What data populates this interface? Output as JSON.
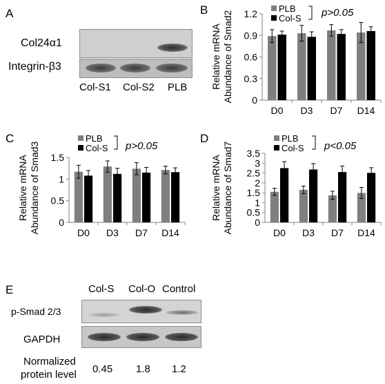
{
  "panels": {
    "A": {
      "letter": "A",
      "rows": [
        "Col24α1",
        "Integrin-β3"
      ],
      "lanes": [
        "Col-S1",
        "Col-S2",
        "PLB"
      ]
    },
    "E": {
      "letter": "E",
      "rows": [
        "p-Smad 2/3",
        "GAPDH"
      ],
      "lanes": [
        "Col-S",
        "Col-O",
        "Control"
      ],
      "quant_label_line1": "Normalized",
      "quant_label_line2": "protein level",
      "quant_values": [
        "0.45",
        "1.8",
        "1.2"
      ]
    }
  },
  "colors": {
    "plb": "#7f7f7f",
    "col_s": "#000000"
  },
  "chart_data": [
    {
      "panel": "B",
      "type": "bar",
      "categories": [
        "D0",
        "D3",
        "D7",
        "D14"
      ],
      "series": [
        {
          "name": "PLB",
          "values": [
            0.89,
            0.93,
            0.97,
            0.94
          ],
          "errors": [
            0.09,
            0.11,
            0.08,
            0.14
          ]
        },
        {
          "name": "Col-S",
          "values": [
            0.91,
            0.88,
            0.92,
            0.96
          ],
          "errors": [
            0.05,
            0.07,
            0.06,
            0.06
          ]
        }
      ],
      "ylabel_line1": "Relative mRNA",
      "ylabel_line2": "Abundance of Smad2",
      "ylim": [
        0,
        1.2
      ],
      "yticks": [
        "0",
        "0.3",
        "0.6",
        "0.9",
        "1.2"
      ],
      "annotation": "p>0.05",
      "legend": "top-left"
    },
    {
      "panel": "C",
      "type": "bar",
      "categories": [
        "D0",
        "D3",
        "D7",
        "D14"
      ],
      "series": [
        {
          "name": "PLB",
          "values": [
            1.17,
            1.29,
            1.24,
            1.21
          ],
          "errors": [
            0.15,
            0.13,
            0.14,
            0.09
          ]
        },
        {
          "name": "Col-S",
          "values": [
            1.08,
            1.12,
            1.15,
            1.16
          ],
          "errors": [
            0.12,
            0.13,
            0.12,
            0.1
          ]
        }
      ],
      "ylabel_line1": "Relative mRNA",
      "ylabel_line2": "Abundance of Smad3",
      "ylim": [
        0,
        1.5
      ],
      "yticks": [
        "0",
        "0.5",
        "1",
        "1.5"
      ],
      "annotation": "p>0.05",
      "legend": "top-left"
    },
    {
      "panel": "D",
      "type": "bar",
      "categories": [
        "D0",
        "D3",
        "D7",
        "D14"
      ],
      "series": [
        {
          "name": "PLB",
          "values": [
            1.55,
            1.65,
            1.37,
            1.49
          ],
          "errors": [
            0.18,
            0.19,
            0.21,
            0.28
          ]
        },
        {
          "name": "Col-S",
          "values": [
            2.75,
            2.68,
            2.55,
            2.51
          ],
          "errors": [
            0.33,
            0.3,
            0.31,
            0.26
          ]
        }
      ],
      "ylabel_line1": "Relative mRNA",
      "ylabel_line2": "Abundance of Smad7",
      "ylim": [
        0,
        3.5
      ],
      "yticks": [
        "0",
        "0.5",
        "1",
        "1.5",
        "2",
        "2.5",
        "3",
        "3.5"
      ],
      "annotation": "p<0.05",
      "legend": "top-left"
    }
  ]
}
